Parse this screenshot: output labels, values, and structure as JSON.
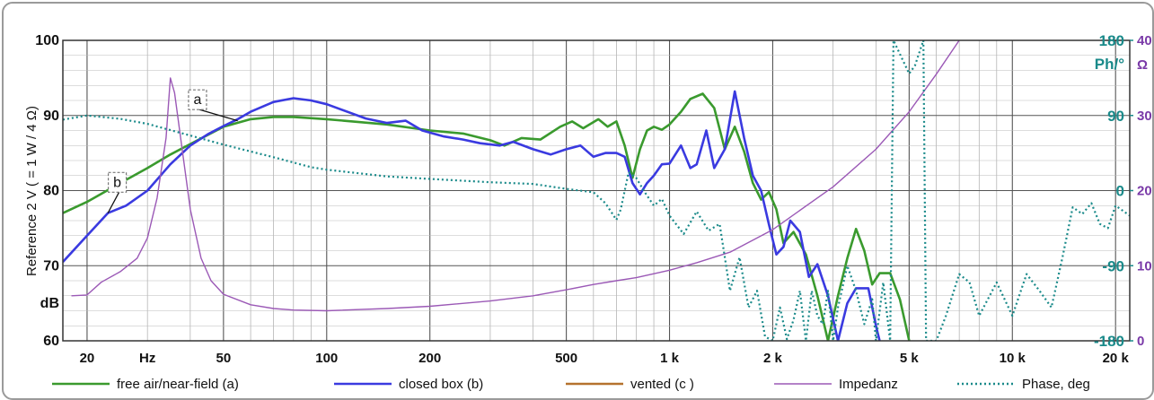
{
  "chart_data": {
    "type": "line",
    "x_scale": "log",
    "xlim": [
      17,
      22000
    ],
    "ylim": [
      60,
      100
    ],
    "grid": true,
    "ylabel": "Reference 2 V ( = 1 W / 4 Ω)",
    "y_unit_label": "dB",
    "x_ticks": [
      {
        "label": "20",
        "value": 20
      },
      {
        "label": "Hz",
        "value": 30
      },
      {
        "label": "50",
        "value": 50
      },
      {
        "label": "100",
        "value": 100
      },
      {
        "label": "200",
        "value": 200
      },
      {
        "label": "500",
        "value": 500
      },
      {
        "label": "1 k",
        "value": 1000
      },
      {
        "label": "2 k",
        "value": 2000
      },
      {
        "label": "5 k",
        "value": 5000
      },
      {
        "label": "10 k",
        "value": 10000
      },
      {
        "label": "20 k",
        "value": 20000
      }
    ],
    "y_ticks": [
      {
        "label": "100",
        "value": 100
      },
      {
        "label": "90",
        "value": 90
      },
      {
        "label": "80",
        "value": 80
      },
      {
        "label": "70",
        "value": 70
      },
      {
        "label": "dB",
        "value": 65
      },
      {
        "label": "60",
        "value": 60
      }
    ],
    "phase_axis": {
      "unit_label": "Ph/°",
      "range": [
        -180,
        180
      ],
      "ticks": [
        {
          "label": "180",
          "value": 180
        },
        {
          "label": "90",
          "value": 90
        },
        {
          "label": "0",
          "value": 0
        },
        {
          "label": "-90",
          "value": -90
        },
        {
          "label": "-180",
          "value": -180
        }
      ]
    },
    "impedance_axis": {
      "unit_label": "Ω",
      "range": [
        0,
        40
      ],
      "ticks": [
        {
          "label": "40",
          "value": 40
        },
        {
          "label": "30",
          "value": 30
        },
        {
          "label": "20",
          "value": 20
        },
        {
          "label": "10",
          "value": 10
        },
        {
          "label": "0",
          "value": 0
        }
      ]
    },
    "annotations": [
      {
        "text": "a",
        "x": 42,
        "y": 92.1,
        "arrow_to": [
          55,
          89.3
        ]
      },
      {
        "text": "b",
        "x": 24.5,
        "y": 81.1,
        "arrow_to": [
          23,
          77
        ]
      }
    ],
    "series": [
      {
        "name": "free air/near-field (a)",
        "color": "#3a9a2e",
        "axis": "dB",
        "points": [
          [
            17,
            77
          ],
          [
            20,
            78.5
          ],
          [
            25,
            81
          ],
          [
            30,
            83
          ],
          [
            35,
            84.8
          ],
          [
            40,
            86.2
          ],
          [
            50,
            88.5
          ],
          [
            60,
            89.5
          ],
          [
            70,
            89.8
          ],
          [
            80,
            89.8
          ],
          [
            100,
            89.5
          ],
          [
            150,
            88.8
          ],
          [
            200,
            88
          ],
          [
            250,
            87.6
          ],
          [
            300,
            86.7
          ],
          [
            330,
            86
          ],
          [
            370,
            87
          ],
          [
            420,
            86.8
          ],
          [
            480,
            88.5
          ],
          [
            520,
            89.2
          ],
          [
            560,
            88.3
          ],
          [
            620,
            89.5
          ],
          [
            660,
            88.5
          ],
          [
            700,
            89.2
          ],
          [
            740,
            86
          ],
          [
            780,
            81.7
          ],
          [
            820,
            85.5
          ],
          [
            860,
            88
          ],
          [
            900,
            88.5
          ],
          [
            950,
            88.1
          ],
          [
            1000,
            88.8
          ],
          [
            1080,
            90.5
          ],
          [
            1150,
            92.2
          ],
          [
            1250,
            92.9
          ],
          [
            1350,
            91
          ],
          [
            1450,
            85.5
          ],
          [
            1550,
            88.5
          ],
          [
            1650,
            85.2
          ],
          [
            1750,
            81
          ],
          [
            1850,
            78.8
          ],
          [
            1950,
            79.8
          ],
          [
            2050,
            77.5
          ],
          [
            2150,
            73
          ],
          [
            2300,
            74.5
          ],
          [
            2500,
            71.5
          ],
          [
            2700,
            66
          ],
          [
            2900,
            60
          ],
          [
            3100,
            66
          ],
          [
            3300,
            71
          ],
          [
            3500,
            74.9
          ],
          [
            3700,
            72
          ],
          [
            3900,
            67.5
          ],
          [
            4100,
            69
          ],
          [
            4400,
            69
          ],
          [
            4700,
            65.5
          ],
          [
            5000,
            60
          ]
        ]
      },
      {
        "name": "closed box (b)",
        "color": "#3a3ae0",
        "axis": "dB",
        "points": [
          [
            17,
            70.5
          ],
          [
            20,
            74
          ],
          [
            23,
            77
          ],
          [
            26,
            78
          ],
          [
            30,
            80
          ],
          [
            35,
            83.5
          ],
          [
            40,
            86
          ],
          [
            45,
            87.5
          ],
          [
            50,
            88.6
          ],
          [
            55,
            89.5
          ],
          [
            60,
            90.5
          ],
          [
            70,
            91.8
          ],
          [
            80,
            92.3
          ],
          [
            90,
            92
          ],
          [
            100,
            91.5
          ],
          [
            130,
            89.6
          ],
          [
            150,
            89
          ],
          [
            170,
            89.3
          ],
          [
            190,
            88
          ],
          [
            220,
            87.2
          ],
          [
            250,
            86.8
          ],
          [
            280,
            86.3
          ],
          [
            320,
            86
          ],
          [
            350,
            86.5
          ],
          [
            400,
            85.5
          ],
          [
            450,
            84.8
          ],
          [
            500,
            85.5
          ],
          [
            550,
            86
          ],
          [
            600,
            84.5
          ],
          [
            650,
            85
          ],
          [
            700,
            85
          ],
          [
            740,
            84.5
          ],
          [
            780,
            81
          ],
          [
            820,
            79.5
          ],
          [
            860,
            81
          ],
          [
            900,
            82
          ],
          [
            950,
            83.5
          ],
          [
            1000,
            83.6
          ],
          [
            1080,
            86
          ],
          [
            1150,
            83
          ],
          [
            1200,
            83.5
          ],
          [
            1280,
            88
          ],
          [
            1350,
            83
          ],
          [
            1450,
            85.5
          ],
          [
            1550,
            93.2
          ],
          [
            1650,
            87
          ],
          [
            1750,
            82
          ],
          [
            1850,
            80
          ],
          [
            1950,
            75.5
          ],
          [
            2050,
            71.5
          ],
          [
            2150,
            72.5
          ],
          [
            2250,
            76
          ],
          [
            2400,
            74.5
          ],
          [
            2550,
            68.5
          ],
          [
            2700,
            70.2
          ],
          [
            2900,
            66
          ],
          [
            3100,
            60
          ],
          [
            3300,
            65
          ],
          [
            3500,
            67
          ],
          [
            3800,
            67
          ],
          [
            4000,
            62
          ],
          [
            4100,
            60
          ]
        ]
      },
      {
        "name": "vented (c )",
        "color": "#b5722e",
        "axis": "dB",
        "points": []
      },
      {
        "name": "Impedanz",
        "color": "#9b59b6",
        "axis": "Ω",
        "points": [
          [
            18,
            6
          ],
          [
            20,
            6.1
          ],
          [
            22,
            7.8
          ],
          [
            25,
            9.2
          ],
          [
            28,
            11
          ],
          [
            30,
            13.7
          ],
          [
            32,
            19
          ],
          [
            34,
            27
          ],
          [
            35,
            35
          ],
          [
            36,
            33
          ],
          [
            38,
            25
          ],
          [
            40,
            17.5
          ],
          [
            43,
            11
          ],
          [
            46,
            8
          ],
          [
            50,
            6.2
          ],
          [
            60,
            4.8
          ],
          [
            70,
            4.3
          ],
          [
            80,
            4.1
          ],
          [
            100,
            4
          ],
          [
            150,
            4.3
          ],
          [
            200,
            4.6
          ],
          [
            300,
            5.3
          ],
          [
            400,
            6
          ],
          [
            500,
            6.8
          ],
          [
            600,
            7.5
          ],
          [
            700,
            8
          ],
          [
            800,
            8.4
          ],
          [
            1000,
            9.4
          ],
          [
            1200,
            10.4
          ],
          [
            1500,
            11.8
          ],
          [
            2000,
            14.8
          ],
          [
            3000,
            20.5
          ],
          [
            4000,
            25.5
          ],
          [
            5000,
            30.5
          ],
          [
            6000,
            35.5
          ],
          [
            7000,
            40
          ]
        ]
      },
      {
        "name": "Phase, deg",
        "color": "#1a8a8a",
        "axis": "Ph/°",
        "dashed": true,
        "points": [
          [
            17,
            85
          ],
          [
            20,
            90
          ],
          [
            25,
            86
          ],
          [
            30,
            80
          ],
          [
            40,
            66
          ],
          [
            50,
            55
          ],
          [
            70,
            40
          ],
          [
            90,
            28
          ],
          [
            100,
            25
          ],
          [
            150,
            17
          ],
          [
            200,
            14
          ],
          [
            300,
            10
          ],
          [
            400,
            8
          ],
          [
            500,
            2
          ],
          [
            600,
            -2
          ],
          [
            650,
            -15
          ],
          [
            700,
            -35
          ],
          [
            720,
            -23
          ],
          [
            760,
            22
          ],
          [
            800,
            15
          ],
          [
            850,
            -3
          ],
          [
            900,
            -18
          ],
          [
            950,
            -10
          ],
          [
            1000,
            -30
          ],
          [
            1100,
            -52
          ],
          [
            1200,
            -25
          ],
          [
            1300,
            -48
          ],
          [
            1400,
            -40
          ],
          [
            1450,
            -80
          ],
          [
            1500,
            -120
          ],
          [
            1600,
            -80
          ],
          [
            1700,
            -140
          ],
          [
            1800,
            -120
          ],
          [
            1900,
            -175
          ],
          [
            2000,
            -180
          ],
          [
            2100,
            -140
          ],
          [
            2200,
            -178
          ],
          [
            2300,
            -155
          ],
          [
            2400,
            -120
          ],
          [
            2500,
            -180
          ],
          [
            2600,
            -120
          ],
          [
            2700,
            -150
          ],
          [
            2800,
            -160
          ],
          [
            2900,
            -120
          ],
          [
            3000,
            -180
          ],
          [
            3100,
            -140
          ],
          [
            3300,
            -90
          ],
          [
            3500,
            -120
          ],
          [
            3700,
            -160
          ],
          [
            3900,
            -130
          ],
          [
            4000,
            -180
          ],
          [
            4200,
            -110
          ],
          [
            4400,
            -180
          ],
          [
            4500,
            180
          ],
          [
            5000,
            140
          ],
          [
            5200,
            150
          ],
          [
            5500,
            180
          ],
          [
            5600,
            -180
          ],
          [
            6000,
            -180
          ],
          [
            6400,
            -150
          ],
          [
            7000,
            -100
          ],
          [
            7500,
            -110
          ],
          [
            8000,
            -150
          ],
          [
            9000,
            -110
          ],
          [
            10000,
            -150
          ],
          [
            11000,
            -100
          ],
          [
            12000,
            -120
          ],
          [
            13000,
            -140
          ],
          [
            14000,
            -80
          ],
          [
            15000,
            -20
          ],
          [
            16000,
            -28
          ],
          [
            17000,
            -15
          ],
          [
            18000,
            -40
          ],
          [
            19000,
            -45
          ],
          [
            20000,
            -18
          ],
          [
            22000,
            -30
          ]
        ]
      }
    ]
  }
}
